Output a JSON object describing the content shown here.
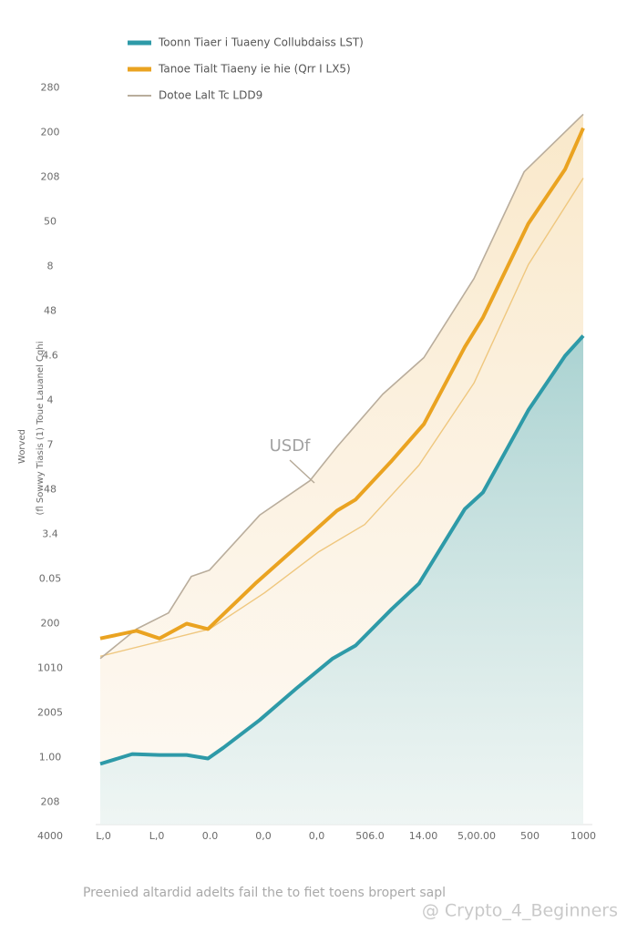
{
  "chart_data": {
    "type": "line",
    "y_axis_label": [
      "Worved",
      "(fl Sowwy Tiasis (1) Toue Lauanel Cqhi"
    ],
    "annotation": "USDf",
    "caption": "Preenied altardid adelts fail the to fiet toens bropert sapl",
    "watermark": "@ Crypto_4_Beginners",
    "xlim": [
      0,
      10.3
    ],
    "xticks": [
      {
        "value": 0,
        "label": "4000"
      },
      {
        "value": 1,
        "label": "L,0"
      },
      {
        "value": 2,
        "label": "L,0"
      },
      {
        "value": 3,
        "label": "0.0"
      },
      {
        "value": 4,
        "label": "0,0"
      },
      {
        "value": 5,
        "label": "0,0"
      },
      {
        "value": 6,
        "label": "506.0"
      },
      {
        "value": 7,
        "label": "14.00"
      },
      {
        "value": 8,
        "label": "5,00.00"
      },
      {
        "value": 9,
        "label": "500"
      },
      {
        "value": 10,
        "label": "1000"
      }
    ],
    "ylim": [
      -0.5,
      16.5
    ],
    "yticks": [
      {
        "value": 16,
        "label": "280"
      },
      {
        "value": 15,
        "label": "200"
      },
      {
        "value": 14,
        "label": "208"
      },
      {
        "value": 13,
        "label": "50"
      },
      {
        "value": 12,
        "label": "8"
      },
      {
        "value": 11,
        "label": "48"
      },
      {
        "value": 10,
        "label": "4.6"
      },
      {
        "value": 9,
        "label": "4"
      },
      {
        "value": 8,
        "label": "7"
      },
      {
        "value": 7,
        "label": "48"
      },
      {
        "value": 6,
        "label": "3.4"
      },
      {
        "value": 5,
        "label": "0.05"
      },
      {
        "value": 4,
        "label": "200"
      },
      {
        "value": 3,
        "label": "1010"
      },
      {
        "value": 2,
        "label": "2005"
      },
      {
        "value": 1,
        "label": "1.00"
      },
      {
        "value": 0,
        "label": "208"
      }
    ],
    "series": [
      {
        "name": "Toonn Tiaer i Tuaeny Collubdaiss LST)",
        "color": "#2e9aa8",
        "x": [
          0.94,
          1.54,
          2.05,
          2.56,
          2.96,
          3.25,
          3.93,
          4.62,
          5.3,
          5.73,
          6.41,
          6.92,
          7.78,
          8.12,
          8.97,
          9.66,
          10.0
        ],
        "values": [
          0.86,
          1.08,
          1.06,
          1.06,
          0.98,
          1.22,
          1.84,
          2.55,
          3.22,
          3.51,
          4.33,
          4.9,
          6.57,
          6.94,
          8.78,
          10.0,
          10.45
        ]
      },
      {
        "name": "Tanoe Tialt Tiaeny ie hie (Qrr I LX5)",
        "color": "#eaa321",
        "x": [
          0.94,
          1.62,
          2.05,
          2.56,
          2.96,
          3.85,
          4.7,
          5.38,
          5.73,
          6.41,
          7.01,
          7.78,
          8.12,
          8.97,
          9.66,
          10.0
        ],
        "values": [
          3.67,
          3.84,
          3.67,
          4.0,
          3.88,
          4.9,
          5.8,
          6.53,
          6.78,
          7.65,
          8.47,
          10.2,
          10.86,
          12.96,
          14.18,
          15.1
        ]
      },
      {
        "name": "Dotoe Lalt Tc LDD9",
        "color": "#b9ad9c",
        "x": [
          0.94,
          1.62,
          2.22,
          2.65,
          2.99,
          3.93,
          4.87,
          5.38,
          6.24,
          7.01,
          7.95,
          8.89,
          10.0
        ],
        "values": [
          3.22,
          3.88,
          4.24,
          5.06,
          5.2,
          6.43,
          7.2,
          7.96,
          9.14,
          9.96,
          11.73,
          14.12,
          15.41
        ]
      },
      {
        "color": "#efc77e",
        "x": [
          0.94,
          2.99,
          4.02,
          5.04,
          5.9,
          6.92,
          7.95,
          8.97,
          10.0
        ],
        "values": [
          3.27,
          3.88,
          4.69,
          5.61,
          6.22,
          7.55,
          9.39,
          12.04,
          13.98
        ]
      }
    ]
  }
}
